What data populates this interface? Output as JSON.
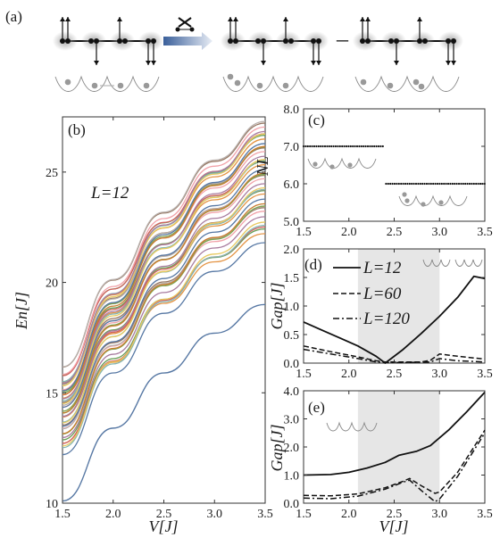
{
  "figure": {
    "panel_a_label": "(a)",
    "panel_a_minus": "–"
  },
  "chart_data": [
    {
      "panel": "(b)",
      "type": "line",
      "xlabel": "V[J]",
      "ylabel": "En[J]",
      "annotation": "L=12",
      "xlim": [
        1.5,
        3.5
      ],
      "ylim": [
        10,
        27.5
      ],
      "xticks": [
        "1.5",
        "2.0",
        "2.5",
        "3.0",
        "3.5"
      ],
      "yticks": [
        "10",
        "15",
        "20",
        "25"
      ],
      "grid": false,
      "x": [
        1.5,
        2.0,
        2.5,
        3.0,
        3.5
      ],
      "lowest_series": {
        "name": "",
        "values": [
          10.1,
          13.4,
          15.9,
          17.7,
          19.0
        ]
      },
      "fan_lower": [
        12.2,
        15.9,
        18.6,
        20.5,
        21.8
      ],
      "fan_upper": [
        15.9,
        19.9,
        23.0,
        25.4,
        27.2
      ],
      "series_count": 46,
      "colors": [
        "#5778a4",
        "#e49444",
        "#6a9f58",
        "#d1615d",
        "#85b6b2",
        "#e7ca60",
        "#a87c9f",
        "#f1a2a9",
        "#967662",
        "#b8b0ac",
        "#7fa34f",
        "#c97c2e"
      ]
    },
    {
      "panel": "(c)",
      "type": "scatter",
      "xlabel": "",
      "ylabel": "NL",
      "xlim": [
        1.5,
        3.5
      ],
      "ylim": [
        5.0,
        8.0
      ],
      "xticks": [
        "1.5",
        "2.0",
        "2.5",
        "3.0",
        "3.5"
      ],
      "yticks": [
        "5.0",
        "6.0",
        "7.0",
        "8.0"
      ],
      "series": [
        {
          "name": "",
          "x_range": [
            1.5,
            2.39
          ],
          "value": 7.0
        },
        {
          "name": "",
          "x_range": [
            2.41,
            3.5
          ],
          "value": 6.0
        }
      ]
    },
    {
      "panel": "(d)",
      "type": "line",
      "xlabel": "",
      "ylabel": "Gap[J]",
      "xlim": [
        1.5,
        3.5
      ],
      "ylim": [
        0.0,
        2.0
      ],
      "xticks": [
        "1.5",
        "2.0",
        "2.5",
        "3.0",
        "3.5"
      ],
      "yticks": [
        "0.0",
        "0.5",
        "1.0",
        "1.5",
        "2.0"
      ],
      "shaded_x": [
        2.1,
        3.0
      ],
      "legend": "top-center",
      "series": [
        {
          "name": "L=12",
          "style": "solid",
          "points": [
            [
              1.5,
              0.72
            ],
            [
              1.7,
              0.58
            ],
            [
              1.9,
              0.44
            ],
            [
              2.1,
              0.3
            ],
            [
              2.3,
              0.12
            ],
            [
              2.4,
              0.0
            ],
            [
              2.6,
              0.24
            ],
            [
              2.8,
              0.52
            ],
            [
              3.0,
              0.82
            ],
            [
              3.2,
              1.15
            ],
            [
              3.38,
              1.52
            ],
            [
              3.5,
              1.48
            ]
          ]
        },
        {
          "name": "L=60",
          "style": "dashed",
          "points": [
            [
              1.5,
              0.3
            ],
            [
              1.8,
              0.2
            ],
            [
              2.1,
              0.11
            ],
            [
              2.3,
              0.04
            ],
            [
              2.4,
              0.02
            ],
            [
              2.6,
              0.02
            ],
            [
              2.8,
              0.02
            ],
            [
              2.9,
              0.05
            ],
            [
              3.0,
              0.16
            ],
            [
              3.2,
              0.12
            ],
            [
              3.5,
              0.07
            ]
          ]
        },
        {
          "name": "L=120",
          "style": "dashdot",
          "points": [
            [
              1.5,
              0.24
            ],
            [
              1.8,
              0.16
            ],
            [
              2.1,
              0.08
            ],
            [
              2.3,
              0.02
            ],
            [
              2.4,
              0.01
            ],
            [
              2.6,
              0.01
            ],
            [
              2.9,
              0.02
            ],
            [
              3.0,
              0.08
            ],
            [
              3.2,
              0.04
            ],
            [
              3.5,
              0.02
            ]
          ]
        }
      ]
    },
    {
      "panel": "(e)",
      "type": "line",
      "xlabel": "V[J]",
      "ylabel": "Gap[J]",
      "xlim": [
        1.5,
        3.5
      ],
      "ylim": [
        0.0,
        4.0
      ],
      "xticks": [
        "1.5",
        "2.0",
        "2.5",
        "3.0",
        "3.5"
      ],
      "yticks": [
        "0.0",
        "1.0",
        "2.0",
        "3.0",
        "4.0"
      ],
      "shaded_x": [
        2.1,
        3.0
      ],
      "series": [
        {
          "name": "",
          "style": "solid",
          "points": [
            [
              1.5,
              1.0
            ],
            [
              1.8,
              1.02
            ],
            [
              2.0,
              1.1
            ],
            [
              2.2,
              1.25
            ],
            [
              2.4,
              1.45
            ],
            [
              2.55,
              1.7
            ],
            [
              2.75,
              1.85
            ],
            [
              2.9,
              2.05
            ],
            [
              3.1,
              2.6
            ],
            [
              3.3,
              3.25
            ],
            [
              3.5,
              3.95
            ]
          ]
        },
        {
          "name": "",
          "style": "dashed",
          "points": [
            [
              1.5,
              0.28
            ],
            [
              1.8,
              0.26
            ],
            [
              2.1,
              0.33
            ],
            [
              2.4,
              0.55
            ],
            [
              2.6,
              0.78
            ],
            [
              2.67,
              0.88
            ],
            [
              2.8,
              0.62
            ],
            [
              2.95,
              0.35
            ],
            [
              3.0,
              0.4
            ],
            [
              3.2,
              1.1
            ],
            [
              3.5,
              2.6
            ]
          ]
        },
        {
          "name": "",
          "style": "dashdot",
          "points": [
            [
              1.5,
              0.18
            ],
            [
              1.8,
              0.16
            ],
            [
              2.1,
              0.25
            ],
            [
              2.4,
              0.5
            ],
            [
              2.6,
              0.75
            ],
            [
              2.67,
              0.82
            ],
            [
              2.8,
              0.45
            ],
            [
              2.95,
              0.05
            ],
            [
              3.0,
              0.15
            ],
            [
              3.2,
              0.95
            ],
            [
              3.5,
              2.5
            ]
          ]
        }
      ]
    }
  ]
}
